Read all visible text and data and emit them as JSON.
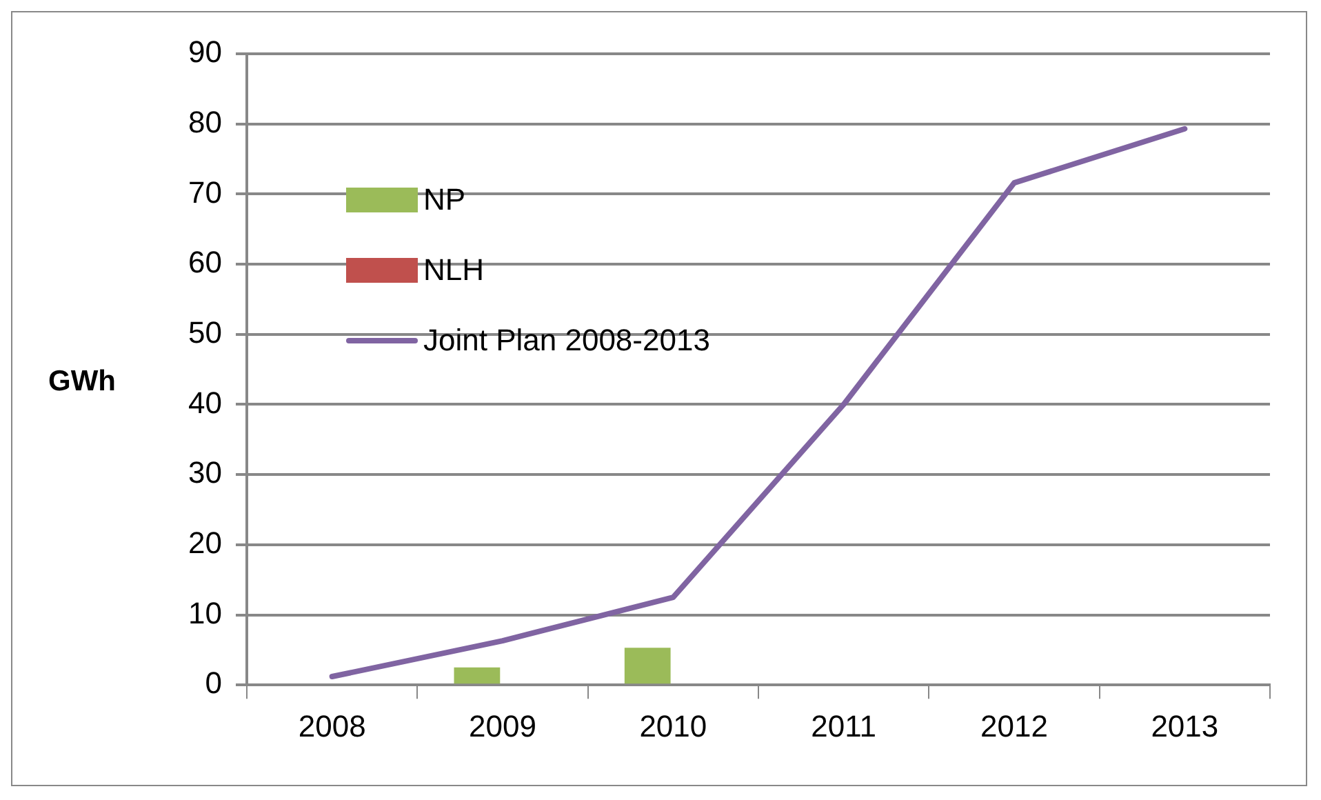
{
  "chart_data": {
    "type": "bar",
    "ylabel": "GWh",
    "categories": [
      "2008",
      "2009",
      "2010",
      "2011",
      "2012",
      "2013"
    ],
    "series": [
      {
        "name": "NP",
        "color": "#9bbb59",
        "values": [
          null,
          2.5,
          5.3,
          null,
          null,
          null
        ]
      },
      {
        "name": "NLH",
        "color": "#c0504d",
        "values": [
          null,
          null,
          null,
          null,
          null,
          null
        ]
      },
      {
        "name": "Joint Plan 2008-2013",
        "type": "line",
        "color": "#8064a2",
        "values": [
          1.2,
          6.3,
          12.5,
          40,
          71.6,
          79.3
        ]
      }
    ],
    "ylim": [
      0,
      90
    ],
    "yticks": [
      0,
      10,
      20,
      30,
      40,
      50,
      60,
      70,
      80,
      90
    ],
    "grid": "y",
    "legend": "top left",
    "marker": "none",
    "line_style": "solid"
  }
}
